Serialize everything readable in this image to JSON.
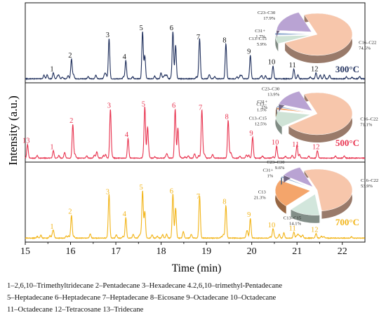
{
  "chart_data": {
    "type": "line",
    "xlabel": "Time (min)",
    "ylabel": "Intensity (a.u.)",
    "xlim": [
      15,
      22.5
    ],
    "x_ticks": [
      15,
      16,
      17,
      18,
      19,
      20,
      21,
      22
    ],
    "x_tick_labels": [
      "15",
      "16",
      "17",
      "18",
      "19",
      "20",
      "21",
      "22"
    ],
    "panels": [
      {
        "temp_label": "300°C",
        "color": "#1f2f5c",
        "peaks": [
          {
            "t": 15.62,
            "h": 0.08,
            "label": "1"
          },
          {
            "t": 16.02,
            "h": 0.26,
            "label": "2"
          },
          {
            "t": 16.85,
            "h": 0.53,
            "label": "3"
          },
          {
            "t": 17.22,
            "h": 0.24,
            "label": "4"
          },
          {
            "t": 17.59,
            "h": 0.62,
            "label": "5"
          },
          {
            "t": 17.64,
            "h": 0.3,
            "label": ""
          },
          {
            "t": 18.26,
            "h": 0.62,
            "label": "6"
          },
          {
            "t": 18.32,
            "h": 0.44,
            "label": ""
          },
          {
            "t": 18.85,
            "h": 0.5,
            "label": "7"
          },
          {
            "t": 19.43,
            "h": 0.46,
            "label": "8"
          },
          {
            "t": 19.97,
            "h": 0.31,
            "label": "9"
          },
          {
            "t": 20.47,
            "h": 0.17,
            "label": "10"
          },
          {
            "t": 20.93,
            "h": 0.13,
            "label": "11"
          },
          {
            "t": 21.42,
            "h": 0.08,
            "label": "12"
          }
        ],
        "pie": {
          "slices": [
            {
              "name": "C16–C22",
              "pct_label": "74.6%",
              "value": 74.6,
              "color": "#f7c6ab"
            },
            {
              "name": "C13–C15",
              "pct_label": "5.9%",
              "value": 5.9,
              "color": "#cfe3d6"
            },
            {
              "name": "C31+",
              "pct_label": "1.7%",
              "value": 1.7,
              "color": "#8ea9cf"
            },
            {
              "name": "C23–C30",
              "pct_label": "17.9%",
              "value": 17.9,
              "color": "#b9a3d3"
            }
          ]
        }
      },
      {
        "temp_label": "500°C",
        "color": "#e8334f",
        "peaks": [
          {
            "t": 15.05,
            "h": 0.18,
            "label": "13"
          },
          {
            "t": 15.62,
            "h": 0.1,
            "label": "1"
          },
          {
            "t": 16.05,
            "h": 0.45,
            "label": "2"
          },
          {
            "t": 16.88,
            "h": 0.65,
            "label": "3"
          },
          {
            "t": 17.27,
            "h": 0.26,
            "label": "4"
          },
          {
            "t": 17.64,
            "h": 0.67,
            "label": "5"
          },
          {
            "t": 17.7,
            "h": 0.4,
            "label": ""
          },
          {
            "t": 18.31,
            "h": 0.65,
            "label": "6"
          },
          {
            "t": 18.37,
            "h": 0.4,
            "label": ""
          },
          {
            "t": 18.9,
            "h": 0.62,
            "label": "7"
          },
          {
            "t": 19.48,
            "h": 0.5,
            "label": "8"
          },
          {
            "t": 20.02,
            "h": 0.28,
            "label": "9"
          },
          {
            "t": 20.55,
            "h": 0.16,
            "label": "10"
          },
          {
            "t": 21.0,
            "h": 0.13,
            "label": "11"
          },
          {
            "t": 21.45,
            "h": 0.1,
            "label": "12"
          }
        ],
        "pie": {
          "slices": [
            {
              "name": "C16–C22",
              "pct_label": "71.1%",
              "value": 71.1,
              "color": "#f7c6ab"
            },
            {
              "name": "C13–C15",
              "pct_label": "12.5%",
              "value": 12.5,
              "color": "#cfe3d6"
            },
            {
              "name": "C13–",
              "pct_label": "1.5%",
              "value": 1.5,
              "color": "#f4a56b"
            },
            {
              "name": "C31+",
              "pct_label": "1%",
              "value": 1.0,
              "color": "#8ea9cf"
            },
            {
              "name": "C23–C30",
              "pct_label": "13.9%",
              "value": 13.9,
              "color": "#b9a3d3"
            }
          ]
        }
      },
      {
        "temp_label": "700°C",
        "color": "#f2b417",
        "peaks": [
          {
            "t": 15.62,
            "h": 0.1,
            "label": "1"
          },
          {
            "t": 16.02,
            "h": 0.3,
            "label": "2"
          },
          {
            "t": 16.85,
            "h": 0.56,
            "label": "3"
          },
          {
            "t": 17.22,
            "h": 0.27,
            "label": "4"
          },
          {
            "t": 17.59,
            "h": 0.62,
            "label": "5"
          },
          {
            "t": 17.64,
            "h": 0.35,
            "label": ""
          },
          {
            "t": 18.26,
            "h": 0.57,
            "label": "6"
          },
          {
            "t": 18.32,
            "h": 0.4,
            "label": ""
          },
          {
            "t": 18.85,
            "h": 0.5,
            "label": "7"
          },
          {
            "t": 19.43,
            "h": 0.43,
            "label": "8"
          },
          {
            "t": 19.97,
            "h": 0.26,
            "label": "9"
          },
          {
            "t": 20.47,
            "h": 0.12,
            "label": "10"
          },
          {
            "t": 20.93,
            "h": 0.08,
            "label": "11"
          },
          {
            "t": 21.42,
            "h": 0.06,
            "label": "12"
          }
        ],
        "pie": {
          "slices": [
            {
              "name": "C16–C22",
              "pct_label": "53.9%",
              "value": 53.9,
              "color": "#f7c6ab"
            },
            {
              "name": "C13–C15",
              "pct_label": "14.1%",
              "value": 14.1,
              "color": "#d2e6dc"
            },
            {
              "name": "C13",
              "pct_label": "21.3%",
              "value": 21.3,
              "color": "#f4a56b"
            },
            {
              "name": "C31+",
              "pct_label": "1%",
              "value": 1.0,
              "color": "#8ea9cf"
            },
            {
              "name": "C23–C30",
              "pct_label": "9.6%",
              "value": 9.6,
              "color": "#b9a3d3"
            }
          ]
        }
      }
    ]
  },
  "legend_lines": [
    "1–2,6,10–Trimethyltridecane 2–Pentadecane 3–Hexadecane 4.2,6,10–trimethyl-Pentadecane",
    "5–Heptadecane 6–Heptadecane 7–Heptadecane 8–Eicosane 9–Octadecane 10–Octadecane",
    "11–Octadecane 12–Tetracosane 13–Tridecane"
  ]
}
